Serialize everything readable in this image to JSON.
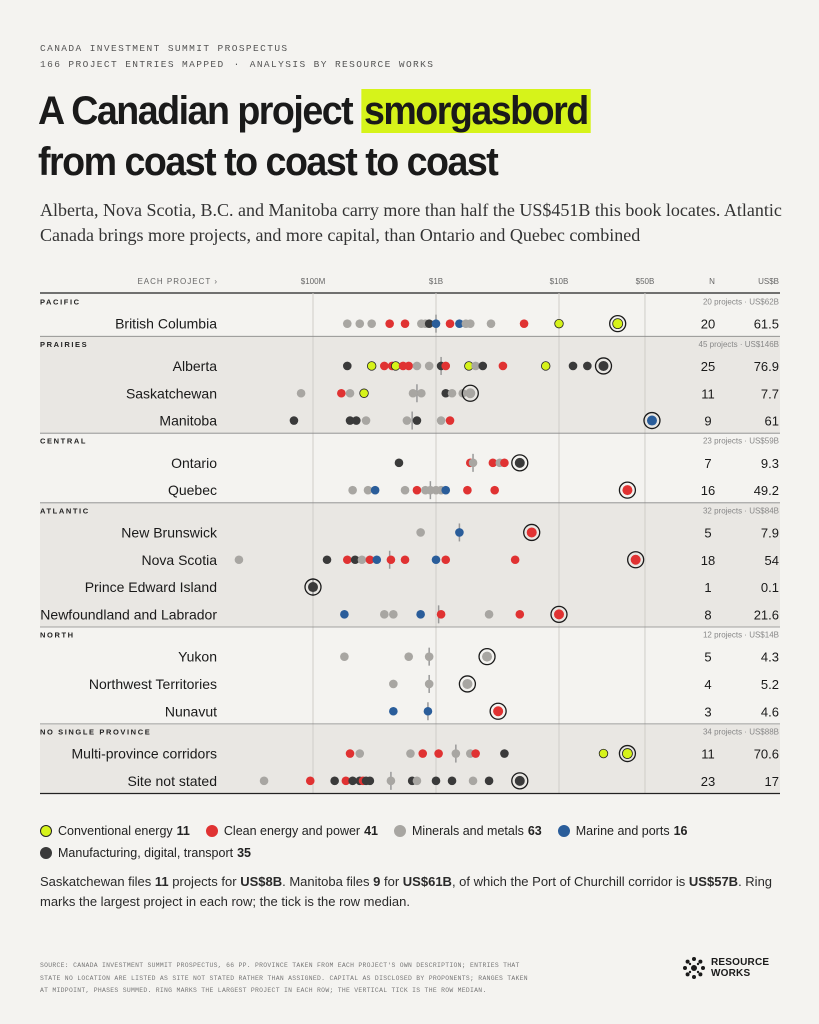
{
  "header": {
    "kicker_line1": "CANADA INVESTMENT SUMMIT PROSPECTUS",
    "kicker_line2a": "166 PROJECT ENTRIES MAPPED",
    "kicker_sep": "·",
    "kicker_line2b": "ANALYSIS BY RESOURCE WORKS",
    "title_part1": "A Canadian project ",
    "title_highlight": "smorgasbord",
    "title_line2": "from coast to coast to coast",
    "subtitle": "Alberta, Nova Scotia, B.C. and Manitoba carry more than half the US$451B this book locates. Atlantic Canada brings more projects, and more capital, than Ontario and Quebec combined"
  },
  "colors": {
    "conventional": "#d6f31a",
    "clean": "#e03232",
    "minerals": "#a8a6a2",
    "marine": "#2a5d9a",
    "manufacturing": "#3a3a3a",
    "band": "#e9e7e3",
    "background": "#f4f3f0",
    "highlight": "#d6f31a"
  },
  "chart_data": {
    "type": "scatter",
    "x_scale": "log",
    "x_unit": "US$ millions",
    "xlim": [
      10,
      150000
    ],
    "column_header": "EACH PROJECT ›",
    "n_header": "N",
    "usd_header": "US$B",
    "x_ticks": [
      {
        "value": 100,
        "label": "$100M"
      },
      {
        "value": 1000,
        "label": "$1B"
      },
      {
        "value": 10000,
        "label": "$10B"
      },
      {
        "value": 50000,
        "label": "$50B"
      }
    ],
    "categories_legend": [
      {
        "key": "conventional",
        "label": "Conventional energy",
        "count": "11"
      },
      {
        "key": "clean",
        "label": "Clean energy and power",
        "count": "41"
      },
      {
        "key": "minerals",
        "label": "Minerals and metals",
        "count": "63"
      },
      {
        "key": "marine",
        "label": "Marine and ports",
        "count": "16"
      },
      {
        "key": "manufacturing",
        "label": "Manufacturing, digital, transport",
        "count": "35"
      }
    ],
    "groups": [
      {
        "name": "PACIFIC",
        "summary": "20 projects · US$62B",
        "shaded": false,
        "rows": [
          {
            "label": "British Columbia",
            "n": "20",
            "usd": "61.5",
            "median": 1000,
            "largest": 30000,
            "largest_cat": "conventional",
            "points": [
              [
                190,
                "minerals"
              ],
              [
                240,
                "minerals"
              ],
              [
                300,
                "minerals"
              ],
              [
                420,
                "clean"
              ],
              [
                560,
                "clean"
              ],
              [
                760,
                "minerals"
              ],
              [
                820,
                "minerals"
              ],
              [
                880,
                "manufacturing"
              ],
              [
                1000,
                "marine"
              ],
              [
                1300,
                "clean"
              ],
              [
                1550,
                "marine"
              ],
              [
                1750,
                "minerals"
              ],
              [
                1900,
                "minerals"
              ],
              [
                2800,
                "minerals"
              ],
              [
                5200,
                "clean"
              ],
              [
                10000,
                "conventional"
              ]
            ]
          }
        ]
      },
      {
        "name": "PRAIRIES",
        "summary": "45 projects · US$146B",
        "shaded": true,
        "rows": [
          {
            "label": "Alberta",
            "n": "25",
            "usd": "76.9",
            "median": 1100,
            "largest": 23000,
            "largest_cat": "manufacturing",
            "points": [
              [
                190,
                "manufacturing"
              ],
              [
                300,
                "conventional"
              ],
              [
                380,
                "clean"
              ],
              [
                440,
                "clean"
              ],
              [
                470,
                "conventional"
              ],
              [
                540,
                "clean"
              ],
              [
                600,
                "clean"
              ],
              [
                700,
                "minerals"
              ],
              [
                880,
                "minerals"
              ],
              [
                1100,
                "manufacturing"
              ],
              [
                1200,
                "clean"
              ],
              [
                1850,
                "conventional"
              ],
              [
                2100,
                "minerals"
              ],
              [
                2400,
                "manufacturing"
              ],
              [
                3500,
                "clean"
              ],
              [
                7800,
                "conventional"
              ],
              [
                13000,
                "manufacturing"
              ],
              [
                17000,
                "manufacturing"
              ]
            ]
          },
          {
            "label": "Saskatchewan",
            "n": "11",
            "usd": "7.7",
            "median": 700,
            "largest": 1900,
            "largest_cat": "minerals",
            "points": [
              [
                80,
                "minerals"
              ],
              [
                170,
                "clean"
              ],
              [
                200,
                "minerals"
              ],
              [
                260,
                "conventional"
              ],
              [
                650,
                "minerals"
              ],
              [
                760,
                "minerals"
              ],
              [
                1200,
                "manufacturing"
              ],
              [
                1350,
                "minerals"
              ],
              [
                1650,
                "minerals"
              ]
            ]
          },
          {
            "label": "Manitoba",
            "n": "9",
            "usd": "61",
            "median": 640,
            "largest": 57000,
            "largest_cat": "marine",
            "points": [
              [
                70,
                "manufacturing"
              ],
              [
                200,
                "manufacturing"
              ],
              [
                225,
                "manufacturing"
              ],
              [
                270,
                "minerals"
              ],
              [
                580,
                "minerals"
              ],
              [
                700,
                "manufacturing"
              ],
              [
                1100,
                "minerals"
              ],
              [
                1300,
                "clean"
              ]
            ]
          }
        ]
      },
      {
        "name": "CENTRAL",
        "summary": "23 projects · US$59B",
        "shaded": false,
        "rows": [
          {
            "label": "Ontario",
            "n": "7",
            "usd": "9.3",
            "median": 2000,
            "largest": 4800,
            "largest_cat": "manufacturing",
            "points": [
              [
                500,
                "manufacturing"
              ],
              [
                1900,
                "clean"
              ],
              [
                2000,
                "minerals"
              ],
              [
                2900,
                "clean"
              ],
              [
                3300,
                "minerals"
              ],
              [
                3600,
                "clean"
              ]
            ]
          },
          {
            "label": "Quebec",
            "n": "16",
            "usd": "49.2",
            "median": 900,
            "largest": 36000,
            "largest_cat": "clean",
            "points": [
              [
                210,
                "minerals"
              ],
              [
                280,
                "minerals"
              ],
              [
                320,
                "marine"
              ],
              [
                560,
                "minerals"
              ],
              [
                700,
                "clean"
              ],
              [
                820,
                "minerals"
              ],
              [
                900,
                "minerals"
              ],
              [
                1000,
                "minerals"
              ],
              [
                1100,
                "minerals"
              ],
              [
                1200,
                "marine"
              ],
              [
                1800,
                "clean"
              ],
              [
                3000,
                "clean"
              ]
            ]
          }
        ]
      },
      {
        "name": "ATLANTIC",
        "summary": "32 projects · US$84B",
        "shaded": true,
        "rows": [
          {
            "label": "New Brunswick",
            "n": "5",
            "usd": "7.9",
            "median": 1550,
            "largest": 6000,
            "largest_cat": "clean",
            "points": [
              [
                750,
                "minerals"
              ],
              [
                1550,
                "marine"
              ]
            ]
          },
          {
            "label": "Nova Scotia",
            "n": "18",
            "usd": "54",
            "median": 420,
            "largest": 42000,
            "largest_cat": "clean",
            "points": [
              [
                25,
                "minerals"
              ],
              [
                130,
                "manufacturing"
              ],
              [
                190,
                "clean"
              ],
              [
                220,
                "manufacturing"
              ],
              [
                250,
                "minerals"
              ],
              [
                290,
                "clean"
              ],
              [
                330,
                "marine"
              ],
              [
                430,
                "clean"
              ],
              [
                560,
                "clean"
              ],
              [
                1000,
                "marine"
              ],
              [
                1200,
                "clean"
              ],
              [
                4400,
                "clean"
              ]
            ]
          },
          {
            "label": "Prince Edward Island",
            "n": "1",
            "usd": "0.1",
            "median": 100,
            "largest": 100,
            "largest_cat": "manufacturing",
            "points": []
          },
          {
            "label": "Newfoundland and Labrador",
            "n": "8",
            "usd": "21.6",
            "median": 1050,
            "largest": 10000,
            "largest_cat": "clean",
            "points": [
              [
                180,
                "marine"
              ],
              [
                380,
                "minerals"
              ],
              [
                450,
                "minerals"
              ],
              [
                750,
                "marine"
              ],
              [
                1100,
                "clean"
              ],
              [
                2700,
                "minerals"
              ],
              [
                4800,
                "clean"
              ]
            ]
          }
        ]
      },
      {
        "name": "NORTH",
        "summary": "12 projects · US$14B",
        "shaded": false,
        "rows": [
          {
            "label": "Yukon",
            "n": "5",
            "usd": "4.3",
            "median": 880,
            "largest": 2600,
            "largest_cat": "minerals",
            "points": [
              [
                180,
                "minerals"
              ],
              [
                600,
                "minerals"
              ],
              [
                880,
                "minerals"
              ]
            ]
          },
          {
            "label": "Northwest Territories",
            "n": "4",
            "usd": "5.2",
            "median": 880,
            "largest": 1800,
            "largest_cat": "minerals",
            "points": [
              [
                450,
                "minerals"
              ],
              [
                880,
                "minerals"
              ]
            ]
          },
          {
            "label": "Nunavut",
            "n": "3",
            "usd": "4.6",
            "median": 860,
            "largest": 3200,
            "largest_cat": "clean",
            "points": [
              [
                450,
                "marine"
              ],
              [
                860,
                "marine"
              ]
            ]
          }
        ]
      },
      {
        "name": "NO SINGLE PROVINCE",
        "summary": "34 projects · US$88B",
        "shaded": true,
        "rows": [
          {
            "label": "Multi-province corridors",
            "n": "11",
            "usd": "70.6",
            "median": 1450,
            "largest": 36000,
            "largest_cat": "conventional",
            "points": [
              [
                200,
                "clean"
              ],
              [
                240,
                "minerals"
              ],
              [
                620,
                "minerals"
              ],
              [
                780,
                "clean"
              ],
              [
                1050,
                "clean"
              ],
              [
                1450,
                "minerals"
              ],
              [
                1900,
                "minerals"
              ],
              [
                2100,
                "clean"
              ],
              [
                3600,
                "manufacturing"
              ],
              [
                23000,
                "conventional"
              ]
            ]
          },
          {
            "label": "Site not stated",
            "n": "23",
            "usd": "17",
            "median": 430,
            "largest": 4800,
            "largest_cat": "manufacturing",
            "points": [
              [
                40,
                "minerals"
              ],
              [
                95,
                "clean"
              ],
              [
                150,
                "manufacturing"
              ],
              [
                185,
                "clean"
              ],
              [
                210,
                "manufacturing"
              ],
              [
                240,
                "manufacturing"
              ],
              [
                255,
                "clean"
              ],
              [
                270,
                "manufacturing"
              ],
              [
                290,
                "manufacturing"
              ],
              [
                430,
                "minerals"
              ],
              [
                640,
                "manufacturing"
              ],
              [
                700,
                "minerals"
              ],
              [
                1000,
                "manufacturing"
              ],
              [
                1350,
                "manufacturing"
              ],
              [
                2000,
                "minerals"
              ],
              [
                2700,
                "manufacturing"
              ]
            ]
          }
        ]
      }
    ]
  },
  "note": {
    "p1": "Saskatchewan files ",
    "b1": "11",
    "p2": " projects for ",
    "b2": "US$8B",
    "p3": ". Manitoba files ",
    "b3": "9",
    "p4": " for ",
    "b4": "US$61B",
    "p5": ", of which the Port of Churchill corridor is ",
    "b5": "US$57B",
    "p6": ". Ring marks the largest project in each row; the tick is the row median."
  },
  "source": "SOURCE: CANADA INVESTMENT SUMMIT PROSPECTUS, 66 PP. PROVINCE TAKEN FROM EACH PROJECT'S OWN DESCRIPTION; ENTRIES THAT STATE NO LOCATION ARE LISTED AS SITE NOT STATED RATHER THAN ASSIGNED. CAPITAL AS DISCLOSED BY PROPONENTS; RANGES TAKEN AT MIDPOINT, PHASES SUMMED. RING MARKS THE LARGEST PROJECT IN EACH ROW; THE VERTICAL TICK IS THE ROW MEDIAN.",
  "brand": {
    "line1": "RESOURCE",
    "line2": "WORKS",
    "logo_icon": "resource-works-logo-icon"
  }
}
